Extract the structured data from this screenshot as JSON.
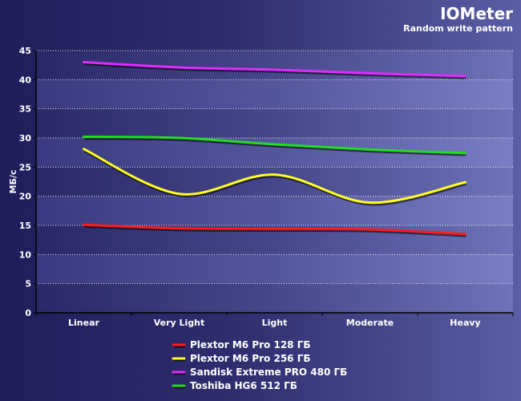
{
  "header": {
    "title": "IOMeter",
    "subtitle": "Random write pattern"
  },
  "chart_data": {
    "type": "line",
    "title": "IOMeter",
    "subtitle": "Random write pattern",
    "xlabel": "",
    "ylabel": "МБ/с",
    "categories": [
      "Linear",
      "Very Light",
      "Light",
      "Moderate",
      "Heavy"
    ],
    "ylim": [
      0,
      45
    ],
    "yticks": [
      0,
      5,
      10,
      15,
      20,
      25,
      30,
      35,
      40,
      45
    ],
    "grid": true,
    "legend_position": "bottom",
    "series": [
      {
        "name": "Plextor M6 Pro 128 ГБ",
        "color": "#ff1a1a",
        "values": [
          15.1,
          14.5,
          14.4,
          14.3,
          13.5
        ]
      },
      {
        "name": "Plextor M6 Pro 256 ГБ",
        "color": "#ffff22",
        "values": [
          28.1,
          20.4,
          23.7,
          18.9,
          22.4
        ]
      },
      {
        "name": "Sandisk Extreme PRO 480 ГБ",
        "color": "#e02bff",
        "values": [
          43.0,
          42.1,
          41.7,
          41.1,
          40.6
        ]
      },
      {
        "name": "Toshiba HG6 512 ГБ",
        "color": "#22dd22",
        "values": [
          30.2,
          30.0,
          28.9,
          28.0,
          27.4
        ]
      }
    ]
  }
}
